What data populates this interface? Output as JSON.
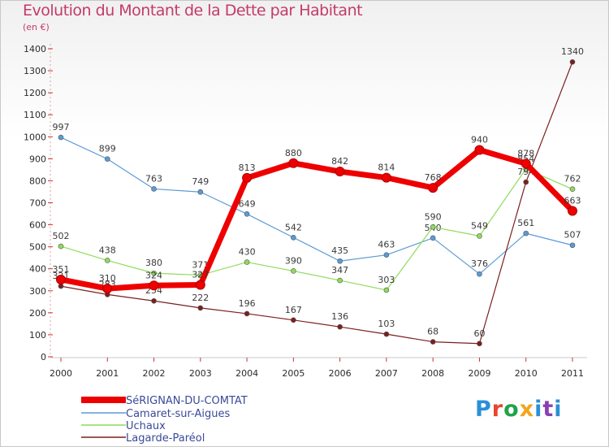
{
  "header": {
    "title": "Evolution du Montant de la Dette par Habitant",
    "subtitle": "(en €)"
  },
  "logo": {
    "text": "Proxiti",
    "colors": [
      "#2c8fd6",
      "#e8452c",
      "#1fa34a",
      "#f2a51d",
      "#2c8fd6",
      "#8c3fb0",
      "#2c8fd6"
    ]
  },
  "chart_data": {
    "type": "line",
    "x": [
      "2000",
      "2001",
      "2002",
      "2003",
      "2004",
      "2005",
      "2006",
      "2007",
      "2008",
      "2009",
      "2010",
      "2011"
    ],
    "ylim": [
      0,
      1400
    ],
    "yticks": [
      0,
      100,
      200,
      300,
      400,
      500,
      600,
      700,
      800,
      900,
      1000,
      1100,
      1200,
      1300,
      1400
    ],
    "grid": false,
    "legend_position": "bottom-left",
    "series": [
      {
        "name": "SéRIGNAN-DU-COMTAT",
        "color": "#ee0000",
        "width": 7,
        "marker": 5.5,
        "values": [
          351,
          310,
          324,
          327,
          813,
          880,
          842,
          814,
          768,
          940,
          878,
          663
        ],
        "labels": [
          "351",
          "310",
          "324",
          "327",
          "813",
          "880",
          "842",
          "814",
          "768",
          "940",
          "878",
          "663"
        ]
      },
      {
        "name": "Camaret-sur-Aigues",
        "color": "#5b9bd5",
        "width": 1.2,
        "marker": 3,
        "values": [
          997,
          899,
          763,
          749,
          649,
          542,
          435,
          463,
          540,
          376,
          561,
          507
        ],
        "labels": [
          "997",
          "899",
          "763",
          "749",
          "649",
          "542",
          "435",
          "463",
          "540",
          "376",
          "561",
          "507"
        ]
      },
      {
        "name": "Uchaux",
        "color": "#8fdc5a",
        "width": 1.2,
        "marker": 3,
        "values": [
          502,
          438,
          380,
          371,
          430,
          390,
          347,
          303,
          590,
          549,
          854,
          762
        ],
        "labels": [
          "502",
          "438",
          "380",
          "371",
          "430",
          "390",
          "347",
          "303",
          "590",
          "549",
          "854",
          "762"
        ]
      },
      {
        "name": "Lagarde-Paréol",
        "color": "#7a1f1f",
        "width": 1.2,
        "marker": 3,
        "values": [
          321,
          283,
          254,
          222,
          196,
          167,
          136,
          103,
          68,
          60,
          794,
          1340
        ],
        "labels": [
          "321",
          "283",
          "254",
          "222",
          "196",
          "167",
          "136",
          "103",
          "68",
          "60",
          "794",
          "1340"
        ]
      }
    ]
  }
}
